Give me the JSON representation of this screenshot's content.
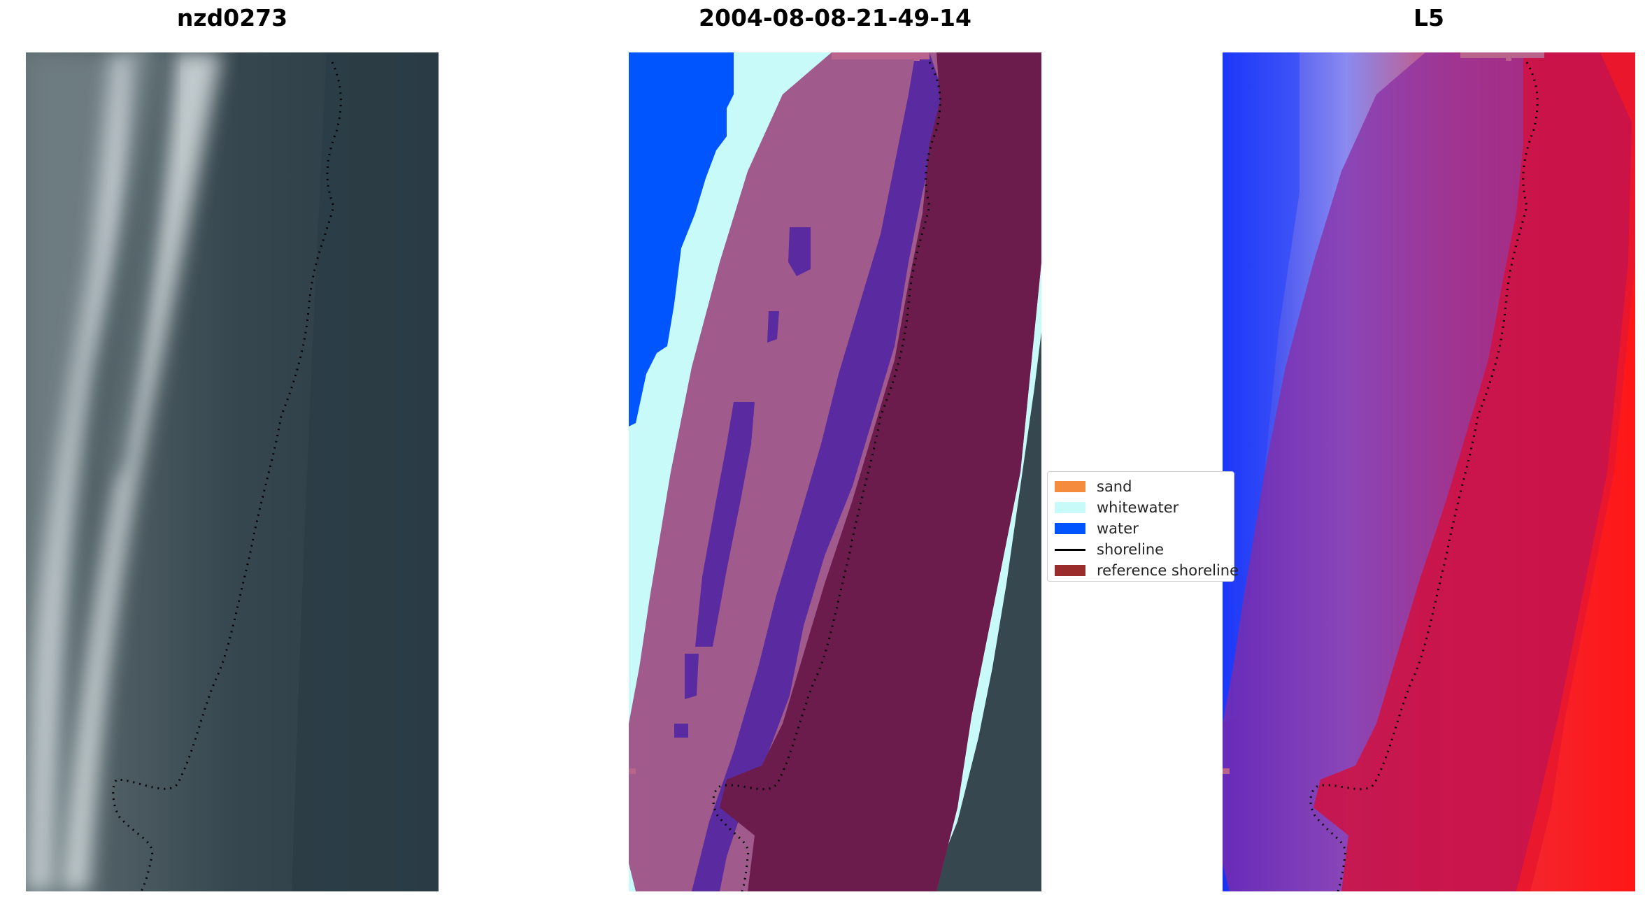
{
  "panels": [
    {
      "title": "nzd0273"
    },
    {
      "title": "2004-08-08-21-49-14"
    },
    {
      "title": "L5"
    }
  ],
  "legend": [
    {
      "label": "sand",
      "color": "#f58b3c",
      "kind": "patch"
    },
    {
      "label": "whitewater",
      "color": "#c8fafa",
      "kind": "patch"
    },
    {
      "label": "water",
      "color": "#0055ff",
      "kind": "patch"
    },
    {
      "label": "shoreline",
      "color": "#000000",
      "kind": "line"
    },
    {
      "label": "reference shoreline",
      "color": "#9a2c2c",
      "kind": "patch"
    }
  ],
  "colors": {
    "deep_water": "#2c3e48",
    "reference_buffer": "#a05a8c",
    "buffer_dark": "#6b1c4c",
    "buffer_water": "#5a2aa0",
    "index_low": "#1020ff",
    "index_high": "#ff1010"
  }
}
